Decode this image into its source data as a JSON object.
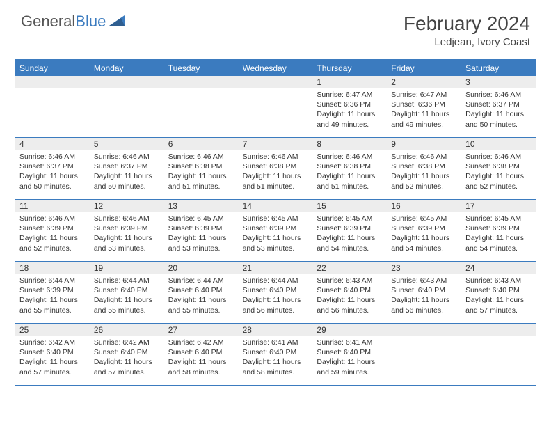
{
  "logo": {
    "textGray": "General",
    "textBlue": "Blue"
  },
  "header": {
    "title": "February 2024",
    "location": "Ledjean, Ivory Coast"
  },
  "colors": {
    "accent": "#3b7bbf",
    "headerText": "#ffffff",
    "dayNumBg": "#ededed",
    "bodyText": "#333333",
    "background": "#ffffff"
  },
  "dayNames": [
    "Sunday",
    "Monday",
    "Tuesday",
    "Wednesday",
    "Thursday",
    "Friday",
    "Saturday"
  ],
  "weeks": [
    [
      {
        "blank": true
      },
      {
        "blank": true
      },
      {
        "blank": true
      },
      {
        "blank": true
      },
      {
        "day": "1",
        "sunrise": "Sunrise: 6:47 AM",
        "sunset": "Sunset: 6:36 PM",
        "daylight": "Daylight: 11 hours and 49 minutes."
      },
      {
        "day": "2",
        "sunrise": "Sunrise: 6:47 AM",
        "sunset": "Sunset: 6:36 PM",
        "daylight": "Daylight: 11 hours and 49 minutes."
      },
      {
        "day": "3",
        "sunrise": "Sunrise: 6:46 AM",
        "sunset": "Sunset: 6:37 PM",
        "daylight": "Daylight: 11 hours and 50 minutes."
      }
    ],
    [
      {
        "day": "4",
        "sunrise": "Sunrise: 6:46 AM",
        "sunset": "Sunset: 6:37 PM",
        "daylight": "Daylight: 11 hours and 50 minutes."
      },
      {
        "day": "5",
        "sunrise": "Sunrise: 6:46 AM",
        "sunset": "Sunset: 6:37 PM",
        "daylight": "Daylight: 11 hours and 50 minutes."
      },
      {
        "day": "6",
        "sunrise": "Sunrise: 6:46 AM",
        "sunset": "Sunset: 6:38 PM",
        "daylight": "Daylight: 11 hours and 51 minutes."
      },
      {
        "day": "7",
        "sunrise": "Sunrise: 6:46 AM",
        "sunset": "Sunset: 6:38 PM",
        "daylight": "Daylight: 11 hours and 51 minutes."
      },
      {
        "day": "8",
        "sunrise": "Sunrise: 6:46 AM",
        "sunset": "Sunset: 6:38 PM",
        "daylight": "Daylight: 11 hours and 51 minutes."
      },
      {
        "day": "9",
        "sunrise": "Sunrise: 6:46 AM",
        "sunset": "Sunset: 6:38 PM",
        "daylight": "Daylight: 11 hours and 52 minutes."
      },
      {
        "day": "10",
        "sunrise": "Sunrise: 6:46 AM",
        "sunset": "Sunset: 6:38 PM",
        "daylight": "Daylight: 11 hours and 52 minutes."
      }
    ],
    [
      {
        "day": "11",
        "sunrise": "Sunrise: 6:46 AM",
        "sunset": "Sunset: 6:39 PM",
        "daylight": "Daylight: 11 hours and 52 minutes."
      },
      {
        "day": "12",
        "sunrise": "Sunrise: 6:46 AM",
        "sunset": "Sunset: 6:39 PM",
        "daylight": "Daylight: 11 hours and 53 minutes."
      },
      {
        "day": "13",
        "sunrise": "Sunrise: 6:45 AM",
        "sunset": "Sunset: 6:39 PM",
        "daylight": "Daylight: 11 hours and 53 minutes."
      },
      {
        "day": "14",
        "sunrise": "Sunrise: 6:45 AM",
        "sunset": "Sunset: 6:39 PM",
        "daylight": "Daylight: 11 hours and 53 minutes."
      },
      {
        "day": "15",
        "sunrise": "Sunrise: 6:45 AM",
        "sunset": "Sunset: 6:39 PM",
        "daylight": "Daylight: 11 hours and 54 minutes."
      },
      {
        "day": "16",
        "sunrise": "Sunrise: 6:45 AM",
        "sunset": "Sunset: 6:39 PM",
        "daylight": "Daylight: 11 hours and 54 minutes."
      },
      {
        "day": "17",
        "sunrise": "Sunrise: 6:45 AM",
        "sunset": "Sunset: 6:39 PM",
        "daylight": "Daylight: 11 hours and 54 minutes."
      }
    ],
    [
      {
        "day": "18",
        "sunrise": "Sunrise: 6:44 AM",
        "sunset": "Sunset: 6:39 PM",
        "daylight": "Daylight: 11 hours and 55 minutes."
      },
      {
        "day": "19",
        "sunrise": "Sunrise: 6:44 AM",
        "sunset": "Sunset: 6:40 PM",
        "daylight": "Daylight: 11 hours and 55 minutes."
      },
      {
        "day": "20",
        "sunrise": "Sunrise: 6:44 AM",
        "sunset": "Sunset: 6:40 PM",
        "daylight": "Daylight: 11 hours and 55 minutes."
      },
      {
        "day": "21",
        "sunrise": "Sunrise: 6:44 AM",
        "sunset": "Sunset: 6:40 PM",
        "daylight": "Daylight: 11 hours and 56 minutes."
      },
      {
        "day": "22",
        "sunrise": "Sunrise: 6:43 AM",
        "sunset": "Sunset: 6:40 PM",
        "daylight": "Daylight: 11 hours and 56 minutes."
      },
      {
        "day": "23",
        "sunrise": "Sunrise: 6:43 AM",
        "sunset": "Sunset: 6:40 PM",
        "daylight": "Daylight: 11 hours and 56 minutes."
      },
      {
        "day": "24",
        "sunrise": "Sunrise: 6:43 AM",
        "sunset": "Sunset: 6:40 PM",
        "daylight": "Daylight: 11 hours and 57 minutes."
      }
    ],
    [
      {
        "day": "25",
        "sunrise": "Sunrise: 6:42 AM",
        "sunset": "Sunset: 6:40 PM",
        "daylight": "Daylight: 11 hours and 57 minutes."
      },
      {
        "day": "26",
        "sunrise": "Sunrise: 6:42 AM",
        "sunset": "Sunset: 6:40 PM",
        "daylight": "Daylight: 11 hours and 57 minutes."
      },
      {
        "day": "27",
        "sunrise": "Sunrise: 6:42 AM",
        "sunset": "Sunset: 6:40 PM",
        "daylight": "Daylight: 11 hours and 58 minutes."
      },
      {
        "day": "28",
        "sunrise": "Sunrise: 6:41 AM",
        "sunset": "Sunset: 6:40 PM",
        "daylight": "Daylight: 11 hours and 58 minutes."
      },
      {
        "day": "29",
        "sunrise": "Sunrise: 6:41 AM",
        "sunset": "Sunset: 6:40 PM",
        "daylight": "Daylight: 11 hours and 59 minutes."
      },
      {
        "blank": true
      },
      {
        "blank": true
      }
    ]
  ]
}
